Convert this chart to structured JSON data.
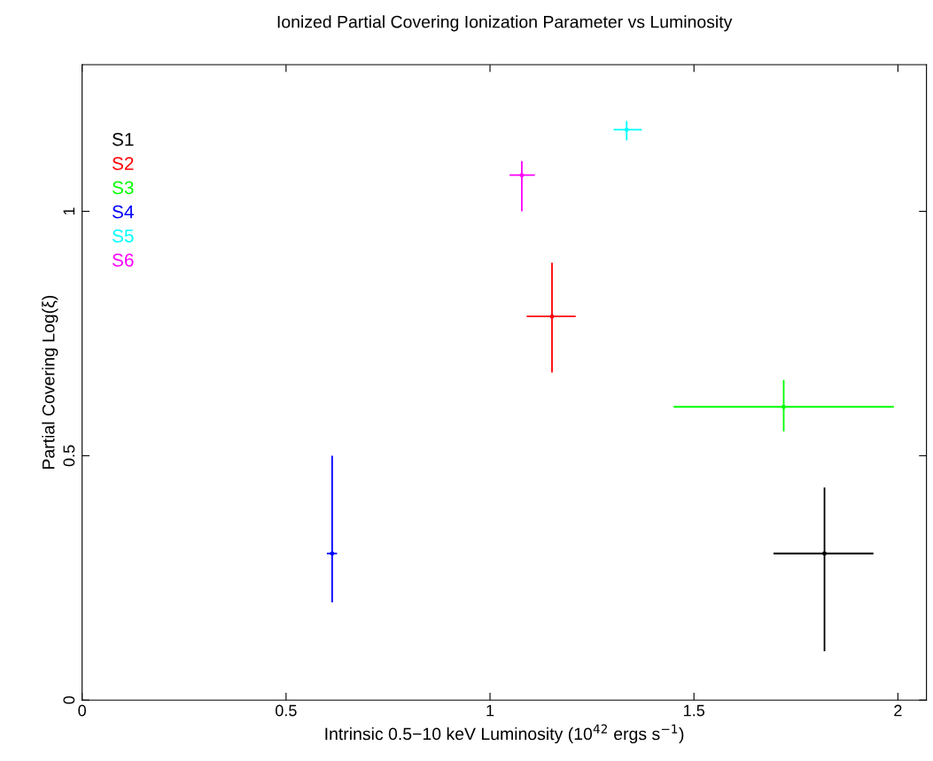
{
  "chart_data": {
    "type": "scatter",
    "title": "Ionized Partial Covering Ionization Parameter vs Luminosity",
    "xlabel": "Intrinsic 0.5−10 keV Luminosity (10$^{42}$ ergs s$^{−1}$)",
    "ylabel": "Partial Covering Log(ξ)",
    "xlim": [
      0,
      2.07
    ],
    "ylim": [
      0,
      1.3
    ],
    "xticks": [
      0,
      0.5,
      1,
      1.5,
      2
    ],
    "yticks": [
      0,
      0.5,
      1
    ],
    "grid": false,
    "legend": "top left",
    "series": [
      {
        "name": "S1",
        "color": "#000000",
        "x": [
          1.82
        ],
        "values": [
          0.3
        ],
        "errors": [
          [
            0.1,
            0.435
          ]
        ],
        "xerrors": [
          [
            1.695,
            1.94
          ]
        ]
      },
      {
        "name": "S2",
        "color": "#ff0000",
        "x": [
          1.152
        ],
        "values": [
          0.785
        ],
        "errors": [
          [
            0.67,
            0.895
          ]
        ],
        "xerrors": [
          [
            1.09,
            1.21
          ]
        ]
      },
      {
        "name": "S3",
        "color": "#00ff00",
        "x": [
          1.72
        ],
        "values": [
          0.6
        ],
        "errors": [
          [
            0.55,
            0.655
          ]
        ],
        "xerrors": [
          [
            1.45,
            1.99
          ]
        ]
      },
      {
        "name": "S4",
        "color": "#0000ff",
        "x": [
          0.613
        ],
        "values": [
          0.3
        ],
        "errors": [
          [
            0.2,
            0.5
          ]
        ],
        "xerrors": [
          [
            0.6,
            0.625
          ]
        ]
      },
      {
        "name": "S5",
        "color": "#00ffff",
        "x": [
          1.335
        ],
        "values": [
          1.167
        ],
        "errors": [
          [
            1.145,
            1.185
          ]
        ],
        "xerrors": [
          [
            1.303,
            1.372
          ]
        ]
      },
      {
        "name": "S6",
        "color": "#ff00ff",
        "x": [
          1.078
        ],
        "values": [
          1.074
        ],
        "errors": [
          [
            1.0,
            1.103
          ]
        ],
        "xerrors": [
          [
            1.048,
            1.11
          ]
        ]
      }
    ]
  }
}
